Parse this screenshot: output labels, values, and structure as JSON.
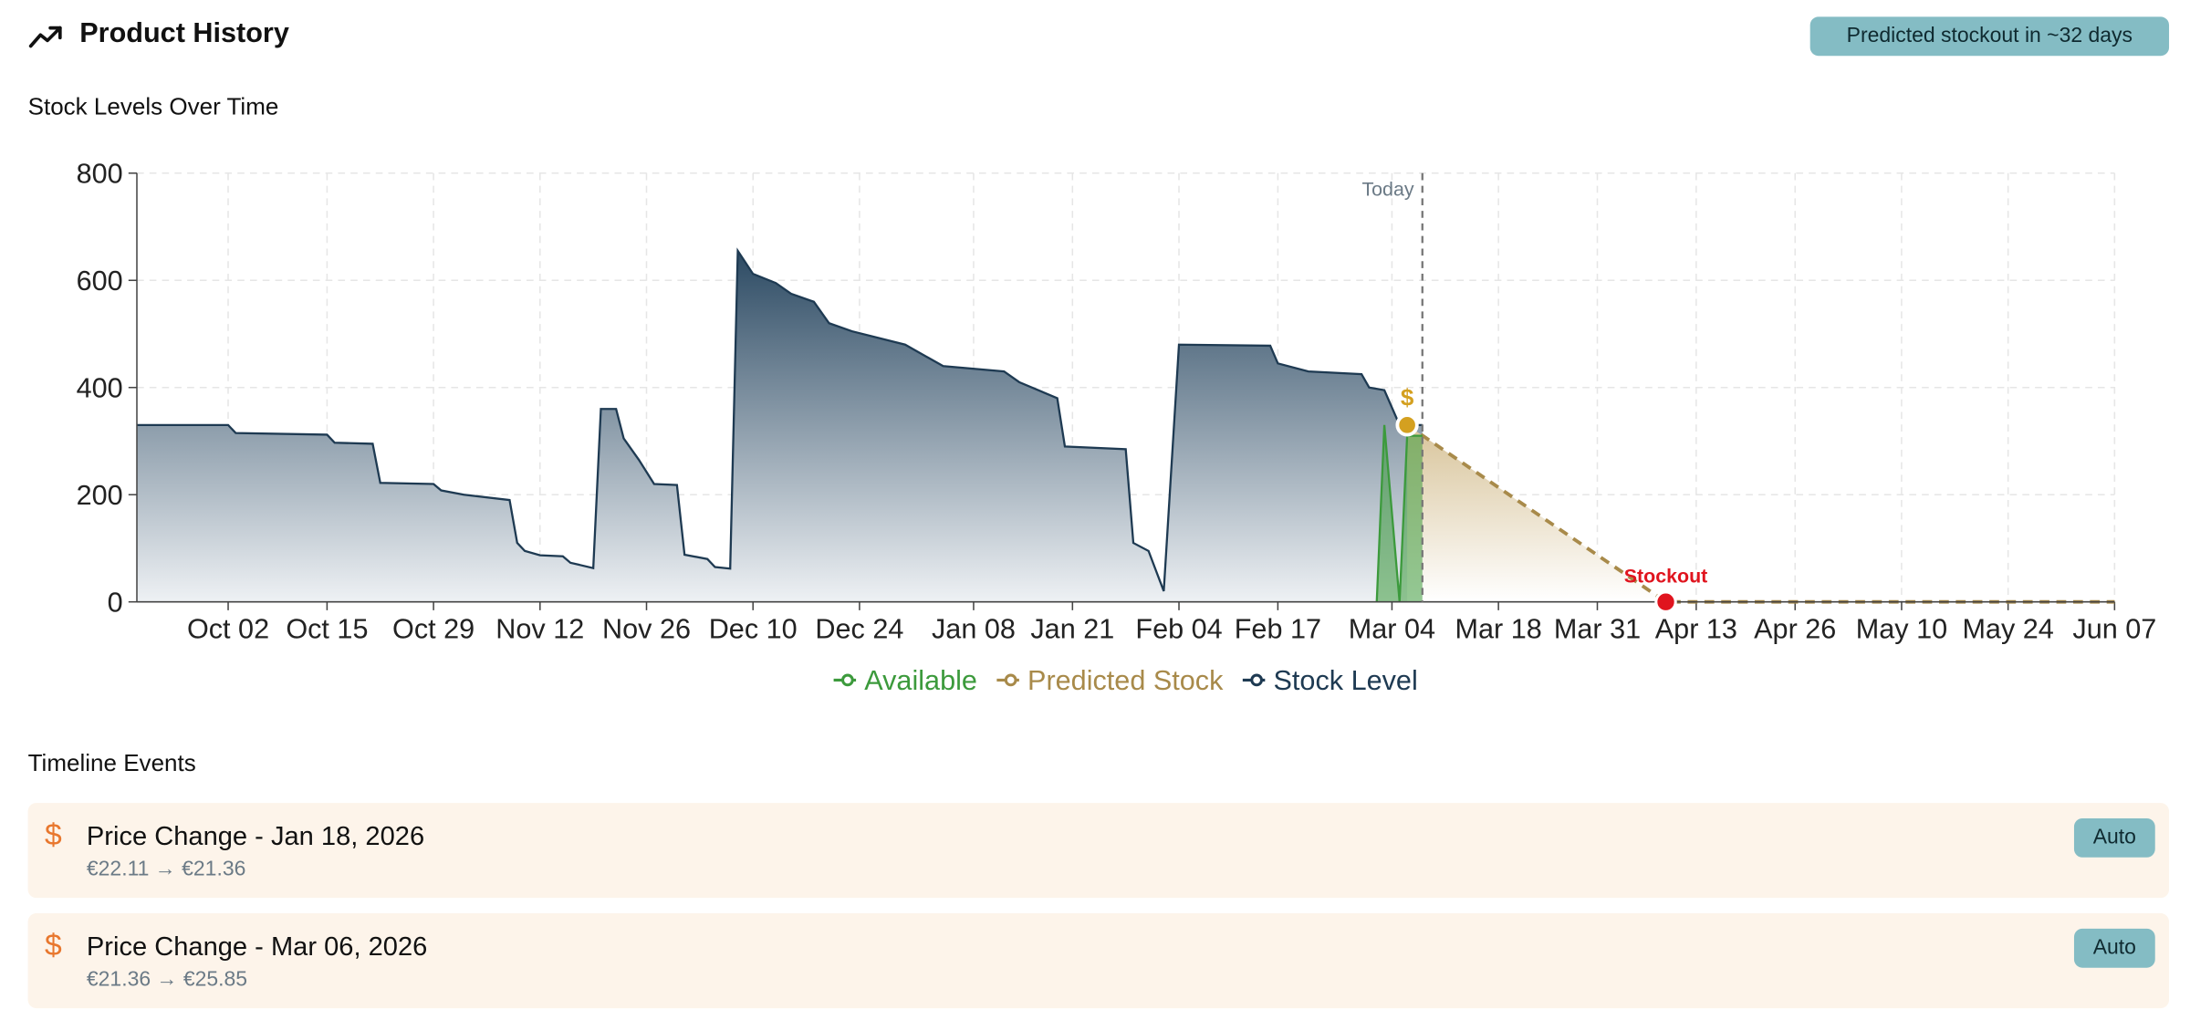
{
  "header": {
    "title": "Product History",
    "badge": "Predicted stockout in ~32 days"
  },
  "chart_data": {
    "type": "area",
    "title": "Stock Levels Over Time",
    "xlim": [
      "Sep 20",
      "Jun 07"
    ],
    "xticks": [
      "Oct 02",
      "Oct 15",
      "Oct 29",
      "Nov 12",
      "Nov 26",
      "Dec 10",
      "Dec 24",
      "Jan 08",
      "Jan 21",
      "Feb 04",
      "Feb 17",
      "Mar 04",
      "Mar 18",
      "Mar 31",
      "Apr 13",
      "Apr 26",
      "May 10",
      "May 24",
      "Jun 07"
    ],
    "ylim": [
      0,
      800
    ],
    "yticks": [
      0,
      200,
      400,
      600,
      800
    ],
    "grid": true,
    "legend": "bottom",
    "series": [
      {
        "name": "Available",
        "color": "#3c9a3c",
        "x": [
          "Mar 02",
          "Mar 03",
          "Mar 05",
          "Mar 06",
          "Mar 08"
        ],
        "values": [
          0,
          330,
          0,
          310,
          310
        ]
      },
      {
        "name": "Predicted Stock",
        "color": "#a88a4a",
        "x": [
          "Mar 06",
          "Apr 09",
          "Jun 07"
        ],
        "values": [
          330,
          0,
          0
        ]
      },
      {
        "name": "Stock Level",
        "color": "#1e3a52",
        "x": [
          "Sep 20",
          "Oct 02",
          "Oct 03",
          "Oct 15",
          "Oct 16",
          "Oct 21",
          "Oct 22",
          "Oct 29",
          "Oct 30",
          "Nov 02",
          "Nov 08",
          "Nov 09",
          "Nov 10",
          "Nov 12",
          "Nov 15",
          "Nov 16",
          "Nov 19",
          "Nov 20",
          "Nov 22",
          "Nov 23",
          "Nov 25",
          "Nov 27",
          "Nov 30",
          "Dec 01",
          "Dec 04",
          "Dec 05",
          "Dec 07",
          "Dec 08",
          "Dec 10",
          "Dec 13",
          "Dec 15",
          "Dec 18",
          "Dec 20",
          "Dec 23",
          "Dec 30",
          "Jan 04",
          "Jan 12",
          "Jan 14",
          "Jan 19",
          "Jan 20",
          "Jan 28",
          "Jan 29",
          "Jan 31",
          "Feb 02",
          "Feb 04",
          "Feb 16",
          "Feb 17",
          "Feb 21",
          "Feb 28",
          "Mar 01",
          "Mar 03",
          "Mar 05",
          "Mar 08"
        ],
        "values": [
          330,
          330,
          315,
          312,
          297,
          295,
          222,
          220,
          208,
          200,
          190,
          110,
          95,
          87,
          85,
          73,
          63,
          360,
          360,
          305,
          265,
          220,
          218,
          88,
          80,
          65,
          62,
          655,
          612,
          595,
          575,
          560,
          520,
          505,
          480,
          440,
          430,
          410,
          380,
          290,
          285,
          110,
          95,
          20,
          480,
          478,
          445,
          430,
          425,
          400,
          395,
          330,
          330
        ]
      }
    ],
    "today": {
      "x": "Mar 08",
      "label": "Today"
    },
    "stockout": {
      "x": "Apr 09",
      "y": 0,
      "label": "Stockout"
    },
    "price_marker": {
      "x": "Mar 06",
      "y": 330,
      "label": "$"
    }
  },
  "timeline": {
    "title": "Timeline Events",
    "events": [
      {
        "icon": "$",
        "title": "Price Change - Jan 18, 2026",
        "detail": "€22.11 → €21.36",
        "badge": "Auto"
      },
      {
        "icon": "$",
        "title": "Price Change - Mar 06, 2026",
        "detail": "€21.36 → €25.85",
        "badge": "Auto"
      }
    ]
  }
}
